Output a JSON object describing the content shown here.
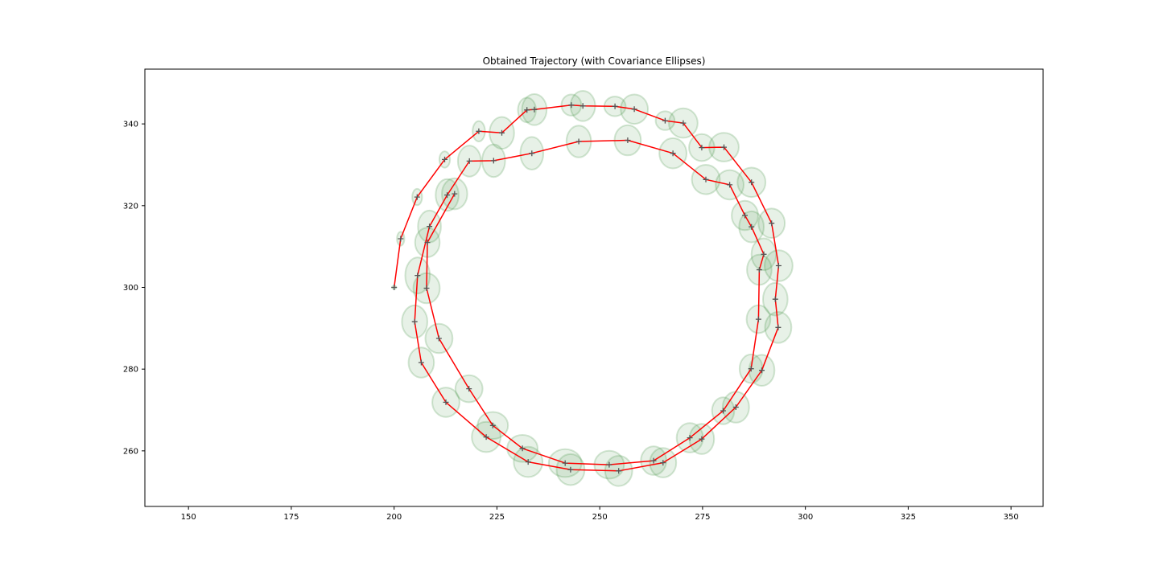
{
  "chart_data": {
    "type": "scatter",
    "title": "Obtained Trajectory (with Covariance Ellipses)",
    "xlabel": "",
    "ylabel": "",
    "xlim": [
      139.4,
      357.8
    ],
    "ylim": [
      246.4,
      353.4
    ],
    "grid": false,
    "legend": "none",
    "x_ticks": [
      150,
      175,
      200,
      225,
      250,
      275,
      300,
      325,
      350
    ],
    "y_ticks": [
      260,
      280,
      300,
      320,
      340
    ],
    "colors": {
      "trajectory": "#ff0000",
      "markers": "#555555",
      "ellipse_fill": "rgba(60,140,60,0.12)",
      "ellipse_stroke": "rgba(60,140,60,0.22)"
    },
    "series": [
      {
        "points": [
          [
            200.0,
            300.0,
            0.5,
            0.4
          ],
          [
            201.6,
            311.9,
            0.9,
            1.7
          ],
          [
            205.6,
            322.1,
            1.2,
            2.0
          ],
          [
            212.3,
            331.3,
            1.3,
            2.0
          ],
          [
            220.6,
            338.2,
            1.5,
            2.5
          ],
          [
            226.2,
            337.8,
            3.0,
            3.9
          ],
          [
            232.3,
            343.4,
            2.2,
            3.0
          ],
          [
            234.1,
            343.5,
            3.0,
            3.8
          ],
          [
            243.1,
            344.6,
            2.4,
            2.6
          ],
          [
            245.9,
            344.4,
            3.0,
            3.7
          ],
          [
            253.7,
            344.3,
            2.6,
            2.4
          ],
          [
            258.4,
            343.6,
            3.3,
            3.6
          ],
          [
            265.9,
            340.8,
            2.3,
            2.3
          ],
          [
            270.3,
            340.2,
            3.5,
            3.6
          ],
          [
            274.8,
            334.2,
            3.1,
            3.3
          ],
          [
            280.2,
            334.3,
            3.6,
            3.5
          ],
          [
            286.9,
            325.7,
            3.4,
            3.6
          ],
          [
            291.8,
            315.7,
            3.2,
            3.6
          ],
          [
            293.5,
            305.3,
            3.4,
            3.8
          ],
          [
            292.7,
            297.1,
            3.0,
            4.0
          ],
          [
            293.4,
            290.2,
            3.2,
            3.8
          ],
          [
            289.4,
            279.7,
            3.1,
            3.8
          ],
          [
            283.1,
            270.7,
            3.2,
            3.8
          ],
          [
            274.8,
            262.9,
            3.0,
            3.7
          ],
          [
            265.4,
            257.1,
            3.2,
            3.6
          ],
          [
            254.6,
            255.1,
            3.3,
            3.7
          ],
          [
            242.9,
            255.4,
            3.4,
            3.8
          ],
          [
            232.6,
            257.3,
            3.5,
            3.7
          ],
          [
            222.4,
            263.4,
            3.5,
            3.7
          ],
          [
            212.6,
            271.9,
            3.3,
            3.6
          ],
          [
            206.6,
            281.6,
            3.1,
            3.7
          ],
          [
            205.0,
            291.6,
            3.1,
            4.0
          ],
          [
            205.7,
            302.9,
            3.0,
            4.4
          ],
          [
            208.6,
            314.9,
            2.8,
            3.9
          ],
          [
            212.9,
            322.6,
            2.8,
            3.9
          ],
          [
            218.3,
            330.9,
            2.8,
            3.8
          ],
          [
            224.2,
            331.0,
            2.8,
            4.0
          ],
          [
            233.5,
            332.8,
            2.8,
            4.0
          ],
          [
            244.9,
            335.7,
            3.0,
            3.9
          ],
          [
            256.8,
            336.0,
            3.2,
            3.7
          ],
          [
            267.8,
            332.8,
            3.3,
            3.7
          ],
          [
            275.8,
            326.4,
            3.4,
            3.6
          ],
          [
            281.6,
            325.1,
            3.4,
            3.6
          ],
          [
            285.3,
            317.6,
            3.2,
            3.6
          ],
          [
            286.9,
            314.8,
            3.0,
            3.8
          ],
          [
            289.9,
            308.1,
            3.0,
            3.9
          ],
          [
            288.8,
            304.3,
            3.0,
            3.7
          ],
          [
            288.6,
            292.2,
            2.9,
            3.4
          ],
          [
            286.8,
            280.1,
            2.8,
            3.5
          ],
          [
            280.0,
            269.8,
            2.7,
            3.3
          ],
          [
            271.9,
            263.2,
            3.2,
            3.6
          ],
          [
            263.1,
            257.6,
            3.1,
            3.5
          ],
          [
            252.3,
            256.6,
            3.6,
            3.4
          ],
          [
            241.6,
            257.0,
            4.0,
            3.4
          ],
          [
            231.2,
            260.6,
            3.7,
            3.3
          ],
          [
            224.0,
            266.2,
            3.7,
            3.3
          ],
          [
            218.2,
            275.2,
            3.3,
            3.3
          ],
          [
            210.9,
            287.5,
            3.3,
            3.6
          ],
          [
            207.9,
            299.8,
            3.2,
            3.7
          ],
          [
            208.1,
            311.0,
            3.0,
            3.6
          ],
          [
            214.7,
            322.9,
            3.1,
            3.8
          ]
        ]
      }
    ]
  }
}
